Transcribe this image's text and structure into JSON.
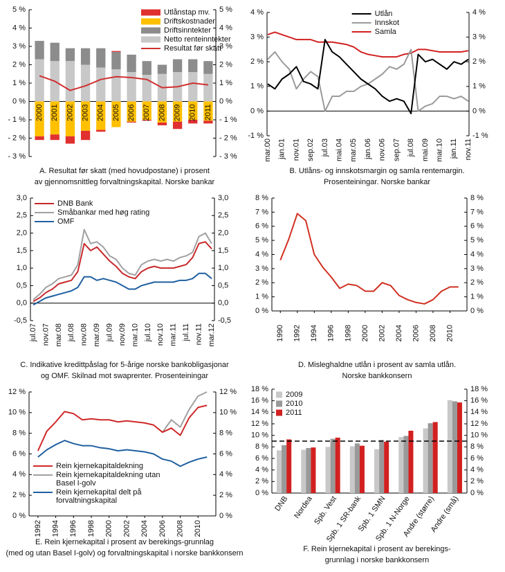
{
  "chart_data": [
    {
      "type": "bar",
      "stacked": true,
      "legend": "upper right",
      "caption": [
        "A. Resultat før skatt (med hovudpostane) i prosent",
        "av gjennomsnittleg forvaltningskapital. Norske bankar"
      ],
      "categories": [
        "2000",
        "2001",
        "2002",
        "2003",
        "2004",
        "2005",
        "2006",
        "2007",
        "2008",
        "2009",
        "2010",
        "2011"
      ],
      "series": [
        {
          "name": "Utlånstap mv.",
          "color": "#e03030",
          "values": [
            -0.2,
            -0.3,
            -0.4,
            -0.5,
            -0.1,
            0.05,
            -0.05,
            -0.05,
            -0.15,
            -0.4,
            -0.2,
            -0.15
          ]
        },
        {
          "name": "Driftskostnader",
          "color": "#ffc000",
          "values": [
            -1.9,
            -1.8,
            -1.9,
            -1.6,
            -1.55,
            -1.4,
            -1.1,
            -1.0,
            -1.15,
            -1.1,
            -1.0,
            -1.05
          ]
        },
        {
          "name": "Driftsinntekter",
          "color": "#8c8c8c",
          "values": [
            1.0,
            1.0,
            0.7,
            0.9,
            1.05,
            0.95,
            0.95,
            0.75,
            0.5,
            0.7,
            0.7,
            0.7
          ]
        },
        {
          "name": "Netto renteinntekter",
          "color": "#c8c8c8",
          "values": [
            2.3,
            2.2,
            2.2,
            2.0,
            1.85,
            1.75,
            1.6,
            1.45,
            1.5,
            1.6,
            1.6,
            1.5
          ]
        },
        {
          "name": "Resultat før skatt",
          "type": "line",
          "color": "#d03030",
          "values": [
            1.4,
            1.1,
            0.6,
            0.85,
            1.2,
            1.35,
            1.3,
            1.2,
            0.75,
            0.8,
            1.0,
            0.9
          ]
        }
      ],
      "ylim": [
        -3,
        5
      ],
      "yticks": [
        {
          "value": 5,
          "label": "5 %"
        },
        {
          "value": 4,
          "label": "4 %"
        },
        {
          "value": 3,
          "label": "3 %"
        },
        {
          "value": 2,
          "label": "2 %"
        },
        {
          "value": 1,
          "label": "1 %"
        },
        {
          "value": 0,
          "label": "0 %"
        },
        {
          "value": -1,
          "label": "- 1 %"
        },
        {
          "value": -2,
          "label": "- 2 %"
        },
        {
          "value": -3,
          "label": "- 3 %"
        }
      ]
    },
    {
      "type": "line",
      "legend": "upper center",
      "caption": [
        "B. Utlåns- og innskotsmargin og samla rentemargin.",
        "Prosenteiningar. Norske bankar"
      ],
      "categories": [
        "mar.00",
        null,
        "jan.01",
        null,
        "nov.01",
        null,
        "sep.02",
        null,
        "jul.03",
        null,
        "mai.04",
        null,
        "mar.05",
        null,
        "jan.06",
        null,
        "nov.06",
        null,
        "sep.07",
        null,
        "jul.08",
        null,
        "mai.09",
        null,
        "mar.10",
        null,
        "jan.11",
        null,
        "nov.11"
      ],
      "series": [
        {
          "name": "Utlån",
          "color": "#000000",
          "values": [
            1.1,
            0.9,
            1.3,
            1.5,
            1.8,
            1.2,
            1.1,
            0.9,
            2.9,
            2.4,
            2.2,
            1.9,
            1.6,
            1.3,
            1.1,
            0.9,
            0.6,
            0.4,
            0.5,
            0.4,
            -0.1,
            2.3,
            2.0,
            2.1,
            1.9,
            1.7,
            2.0,
            1.9,
            2.1
          ]
        },
        {
          "name": "Innskot",
          "color": "#9a9a9a",
          "values": [
            2.1,
            2.4,
            2.0,
            1.7,
            0.9,
            1.3,
            1.6,
            1.4,
            0.0,
            0.6,
            0.6,
            0.8,
            0.8,
            1.0,
            1.1,
            1.3,
            1.5,
            1.8,
            1.7,
            1.9,
            2.5,
            0.0,
            0.2,
            0.3,
            0.6,
            0.6,
            0.5,
            0.6,
            0.4
          ]
        },
        {
          "name": "Samla",
          "color": "#d22020",
          "values": [
            3.1,
            3.2,
            3.1,
            3.0,
            2.9,
            2.9,
            2.9,
            2.8,
            2.8,
            2.8,
            2.75,
            2.7,
            2.6,
            2.4,
            2.3,
            2.25,
            2.2,
            2.2,
            2.2,
            2.3,
            2.35,
            2.5,
            2.5,
            2.45,
            2.4,
            2.4,
            2.4,
            2.4,
            2.45
          ]
        }
      ],
      "ylim": [
        -1,
        4
      ],
      "yticks": [
        {
          "value": 4,
          "label": "4 %"
        },
        {
          "value": 3,
          "label": "3 %"
        },
        {
          "value": 2,
          "label": "2 %"
        },
        {
          "value": 1,
          "label": "1 %"
        },
        {
          "value": 0,
          "label": "0 %"
        },
        {
          "value": -1,
          "label": "-1 %"
        }
      ]
    },
    {
      "type": "line",
      "legend": "upper left",
      "caption": [
        "C. Indikative kredittpåslag for 5-årige norske bankobligasjonar",
        "og OMF. Skilnad mot swaprenter. Prosenteiningar"
      ],
      "categories": [
        "jul.07",
        null,
        "nov.07",
        null,
        "mar.08",
        null,
        "jul.08",
        null,
        "nov.08",
        null,
        "mar.09",
        null,
        "jul.09",
        null,
        "nov.09",
        null,
        "mar.10",
        null,
        "jul.10",
        null,
        "nov.10",
        null,
        "mar.11",
        null,
        "jul.11",
        null,
        "nov.11",
        null,
        "mar.12"
      ],
      "series": [
        {
          "name": "DNB Bank",
          "color": "#c8282a",
          "values": [
            0.05,
            0.15,
            0.3,
            0.4,
            0.55,
            0.6,
            0.65,
            0.9,
            1.7,
            1.5,
            1.6,
            1.4,
            1.2,
            1.05,
            0.85,
            0.75,
            0.7,
            0.9,
            1.0,
            1.05,
            1.0,
            1.0,
            1.0,
            1.05,
            1.1,
            1.3,
            1.7,
            1.75,
            1.55
          ]
        },
        {
          "name": "Småbankar med høg rating",
          "color": "#a0a0a0",
          "values": [
            0.1,
            0.25,
            0.45,
            0.55,
            0.7,
            0.75,
            0.8,
            1.1,
            2.1,
            1.7,
            1.75,
            1.6,
            1.35,
            1.25,
            1.0,
            0.85,
            0.8,
            1.1,
            1.2,
            1.25,
            1.2,
            1.25,
            1.2,
            1.3,
            1.35,
            1.45,
            1.9,
            2.0,
            1.7
          ]
        },
        {
          "name": "OMF",
          "color": "#1f5fa0",
          "values": [
            -0.05,
            0.05,
            0.15,
            0.2,
            0.25,
            0.3,
            0.35,
            0.45,
            0.75,
            0.75,
            0.65,
            0.7,
            0.65,
            0.6,
            0.5,
            0.4,
            0.4,
            0.5,
            0.55,
            0.6,
            0.6,
            0.6,
            0.6,
            0.65,
            0.65,
            0.7,
            0.85,
            0.85,
            0.7
          ]
        }
      ],
      "ylim": [
        -0.5,
        3
      ],
      "yticks": [
        {
          "value": 3,
          "label": "3,0"
        },
        {
          "value": 2.5,
          "label": "2,5"
        },
        {
          "value": 2,
          "label": "2,0"
        },
        {
          "value": 1.5,
          "label": "1,5"
        },
        {
          "value": 1,
          "label": "1,0"
        },
        {
          "value": 0.5,
          "label": "0,5"
        },
        {
          "value": 0,
          "label": "0,0"
        },
        {
          "value": -0.5,
          "label": "-0,5"
        }
      ]
    },
    {
      "type": "line",
      "caption": [
        "D. Misleghaldne utlån i prosent av samla utlån.",
        "Norske bankkonsern"
      ],
      "x": [
        1990,
        1991,
        1992,
        1993,
        1994,
        1995,
        1996,
        1997,
        1998,
        1999,
        2000,
        2001,
        2002,
        2003,
        2004,
        2005,
        2006,
        2007,
        2008,
        2009,
        2010,
        2011
      ],
      "values": [
        3.6,
        5.1,
        6.9,
        6.4,
        4.0,
        3.1,
        2.4,
        1.6,
        1.9,
        1.8,
        1.4,
        1.4,
        2.0,
        1.8,
        1.1,
        0.8,
        0.6,
        0.5,
        0.8,
        1.4,
        1.7,
        1.7
      ],
      "color": "#d03020",
      "xlim": [
        1989,
        2012
      ],
      "xticks": [
        1990,
        1992,
        1994,
        1996,
        1998,
        2000,
        2002,
        2004,
        2006,
        2008,
        2010
      ],
      "ylim": [
        0,
        8
      ],
      "yticks": [
        {
          "value": 0,
          "label": "0 %"
        },
        {
          "value": 1,
          "label": "1 %"
        },
        {
          "value": 2,
          "label": "2 %"
        },
        {
          "value": 3,
          "label": "3 %"
        },
        {
          "value": 4,
          "label": "4 %"
        },
        {
          "value": 5,
          "label": "5 %"
        },
        {
          "value": 6,
          "label": "6 %"
        },
        {
          "value": 7,
          "label": "7 %"
        },
        {
          "value": 8,
          "label": "8 %"
        }
      ]
    },
    {
      "type": "line",
      "legend": "lower left",
      "caption": [
        "E. Rein kjernekapital i prosent av berekings-grunnlag",
        "(med og utan Basel I-golv) og forvaltningskapital i norske bankkonsern"
      ],
      "x": [
        1992,
        1993,
        1994,
        1995,
        1996,
        1997,
        1998,
        1999,
        2000,
        2001,
        2002,
        2003,
        2004,
        2005,
        2006,
        2007,
        2008,
        2009,
        2010,
        2011
      ],
      "series": [
        {
          "name": "Rein kjernekapitaldekning",
          "color": "#d02828",
          "values": [
            6.3,
            8.2,
            9.1,
            10.1,
            9.9,
            9.3,
            9.4,
            9.3,
            9.3,
            9.1,
            9.2,
            9.1,
            9.0,
            8.8,
            8.1,
            8.5,
            7.8,
            9.5,
            10.5,
            10.7
          ]
        },
        {
          "name": "Rein kjernekapitaldekning utan Basel I-golv",
          "color": "#a0a0a0",
          "values": [
            null,
            null,
            null,
            null,
            null,
            null,
            null,
            null,
            null,
            null,
            null,
            null,
            null,
            null,
            8.1,
            9.3,
            8.6,
            10.3,
            11.6,
            12.0
          ]
        },
        {
          "name": "Rein kjernekapital delt på forvaltningskapital",
          "color": "#1f5fa0",
          "values": [
            5.7,
            6.4,
            6.9,
            7.3,
            7.0,
            6.8,
            6.8,
            6.6,
            6.5,
            6.3,
            6.4,
            6.3,
            6.2,
            6.0,
            5.5,
            5.3,
            4.8,
            5.2,
            5.5,
            5.7
          ]
        }
      ],
      "xlim": [
        1991,
        2012
      ],
      "xticks": [
        1992,
        1994,
        1996,
        1998,
        2000,
        2002,
        2004,
        2006,
        2008,
        2010
      ],
      "ylim": [
        0,
        12
      ],
      "yticks": [
        {
          "value": 0,
          "label": "0 %"
        },
        {
          "value": 2,
          "label": "2 %"
        },
        {
          "value": 4,
          "label": "4 %"
        },
        {
          "value": 6,
          "label": "6 %"
        },
        {
          "value": 8,
          "label": "8 %"
        },
        {
          "value": 10,
          "label": "10 %"
        },
        {
          "value": 12,
          "label": "12 %"
        }
      ]
    },
    {
      "type": "bar",
      "stacked": false,
      "legend": "upper left",
      "caption": [
        "F. Rein kjernekapital i prosent av berekings-",
        "grunnlag i norske bankkonsern"
      ],
      "categories": [
        "DNB",
        "Nordea",
        "Spb. Vest",
        "Spb. 1 SR-bank",
        "Spb. 1 SMN",
        "Spb. 1 N-Norge",
        "Andre (større)",
        "Andre (små)"
      ],
      "series": [
        {
          "name": "2009",
          "color": "#c8c8c8",
          "values": [
            7.4,
            7.5,
            8.0,
            8.1,
            7.6,
            9.7,
            11.2,
            16.1
          ]
        },
        {
          "name": "2010",
          "color": "#999999",
          "values": [
            8.3,
            7.8,
            9.4,
            8.6,
            9.2,
            9.9,
            12.1,
            15.9
          ]
        },
        {
          "name": "2011",
          "color": "#d22020",
          "values": [
            9.3,
            7.9,
            9.6,
            8.2,
            8.9,
            10.8,
            12.3,
            15.7
          ]
        }
      ],
      "reference_line": 9,
      "ylim": [
        0,
        18
      ],
      "yticks": [
        {
          "value": 0,
          "label": "0 %"
        },
        {
          "value": 2,
          "label": "2 %"
        },
        {
          "value": 4,
          "label": "4 %"
        },
        {
          "value": 6,
          "label": "6 %"
        },
        {
          "value": 8,
          "label": "8 %"
        },
        {
          "value": 10,
          "label": "10 %"
        },
        {
          "value": 12,
          "label": "12 %"
        },
        {
          "value": 14,
          "label": "14 %"
        },
        {
          "value": 16,
          "label": "16 %"
        },
        {
          "value": 18,
          "label": "18 %"
        }
      ]
    }
  ]
}
